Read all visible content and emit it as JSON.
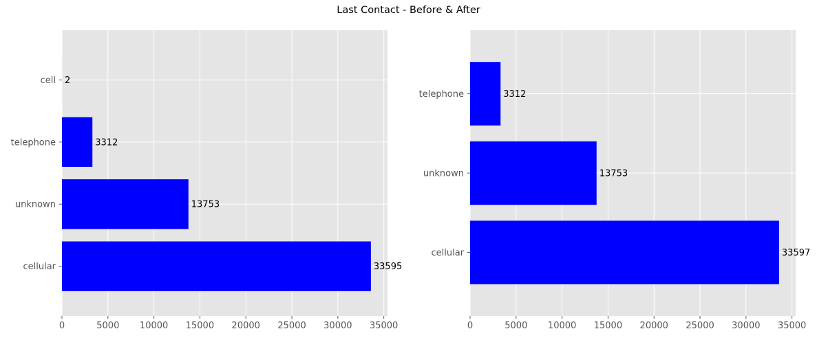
{
  "suptitle": "Last Contact - Before & After",
  "colors": {
    "bar": "#0000ff",
    "plot_background": "#e5e5e5",
    "grid": "#ffffff",
    "tick": "#555555"
  },
  "chart_data": [
    {
      "type": "bar",
      "orientation": "horizontal",
      "title": "",
      "xlabel": "",
      "ylabel": "",
      "categories": [
        "cellular",
        "unknown",
        "telephone",
        "cell"
      ],
      "values": [
        33595,
        13753,
        3312,
        2
      ],
      "value_labels": [
        "33595",
        "13753",
        "3312",
        "2"
      ],
      "xlim": [
        0,
        35400
      ],
      "xticks": [
        0,
        5000,
        10000,
        15000,
        20000,
        25000,
        30000,
        35000
      ],
      "xtick_labels": [
        "0",
        "5000",
        "10000",
        "15000",
        "20000",
        "25000",
        "30000",
        "35000"
      ],
      "grid": true,
      "legend": "none"
    },
    {
      "type": "bar",
      "orientation": "horizontal",
      "title": "",
      "xlabel": "",
      "ylabel": "",
      "categories": [
        "cellular",
        "unknown",
        "telephone"
      ],
      "values": [
        33597,
        13753,
        3312
      ],
      "value_labels": [
        "33597",
        "13753",
        "3312"
      ],
      "xlim": [
        0,
        35400
      ],
      "xticks": [
        0,
        5000,
        10000,
        15000,
        20000,
        25000,
        30000,
        35000
      ],
      "xtick_labels": [
        "0",
        "5000",
        "10000",
        "15000",
        "20000",
        "25000",
        "30000",
        "35000"
      ],
      "grid": true,
      "legend": "none"
    }
  ]
}
